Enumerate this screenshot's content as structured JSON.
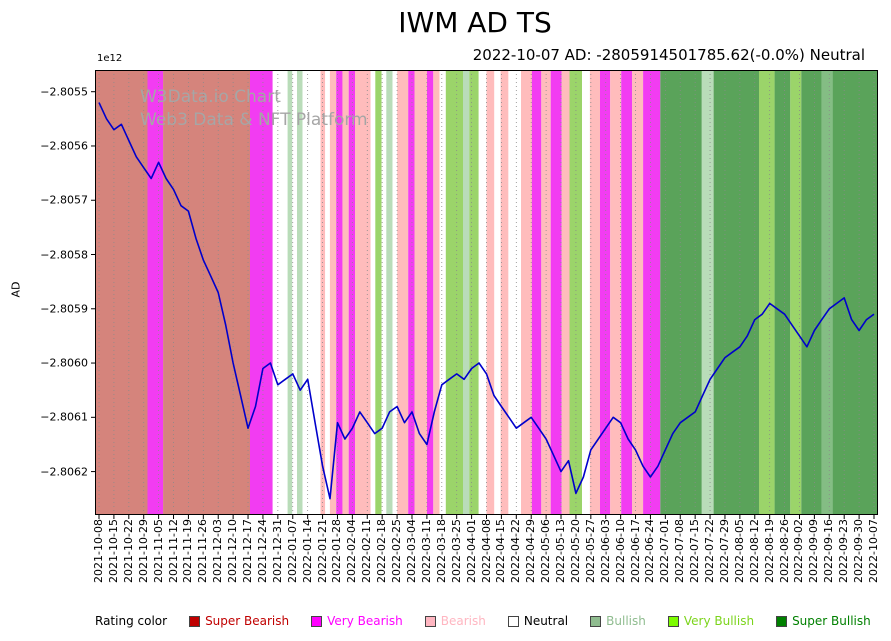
{
  "chart_data": {
    "type": "line",
    "title": "IWM AD TS",
    "subtitle": "2022-10-07 AD: -2805914501785.62(-0.0%) Neutral",
    "as_of_date": "2022-10-07",
    "ad_current_value": "-2805914501785.62",
    "ad_change_pct": "-0.0%",
    "rating_current": "Neutral",
    "ylabel": "AD",
    "y_offset_label": "1e12",
    "y_scale": "values are in units of 1e12",
    "ylim": [
      -2.80628,
      -2.80546
    ],
    "y_ticks": {
      "values": [
        -2.8055,
        -2.8056,
        -2.8057,
        -2.8058,
        -2.8059,
        -2.806,
        -2.8061,
        -2.8062
      ],
      "labels": [
        "−2.8055",
        "−2.8056",
        "−2.8057",
        "−2.8058",
        "−2.8059",
        "−2.8060",
        "−2.8061",
        "−2.8062"
      ]
    },
    "x_tick_labels": [
      "2021-10-08",
      "2021-10-15",
      "2021-10-22",
      "2021-10-29",
      "2021-11-05",
      "2021-11-12",
      "2021-11-19",
      "2021-11-26",
      "2021-12-03",
      "2021-12-10",
      "2021-12-17",
      "2021-12-24",
      "2021-12-31",
      "2022-01-07",
      "2022-01-14",
      "2022-01-21",
      "2022-01-28",
      "2022-02-04",
      "2022-02-11",
      "2022-02-18",
      "2022-02-25",
      "2022-03-04",
      "2022-03-11",
      "2022-03-18",
      "2022-03-25",
      "2022-04-01",
      "2022-04-08",
      "2022-04-15",
      "2022-04-22",
      "2022-04-29",
      "2022-05-06",
      "2022-05-13",
      "2022-05-20",
      "2022-05-27",
      "2022-06-03",
      "2022-06-10",
      "2022-06-17",
      "2022-06-24",
      "2022-07-01",
      "2022-07-08",
      "2022-07-15",
      "2022-07-22",
      "2022-07-29",
      "2022-08-05",
      "2022-08-12",
      "2022-08-19",
      "2022-08-26",
      "2022-09-02",
      "2022-09-09",
      "2022-09-16",
      "2022-09-23",
      "2022-09-30",
      "2022-10-07"
    ],
    "series": [
      {
        "name": "AD",
        "color": "#0000cc",
        "values": [
          -2.80552,
          -2.80555,
          -2.80557,
          -2.80556,
          -2.80559,
          -2.80562,
          -2.80564,
          -2.80566,
          -2.80563,
          -2.80566,
          -2.80568,
          -2.80571,
          -2.80572,
          -2.80577,
          -2.80581,
          -2.80584,
          -2.80587,
          -2.80593,
          -2.806,
          -2.80606,
          -2.80612,
          -2.80608,
          -2.80601,
          -2.806,
          -2.80604,
          -2.80603,
          -2.80602,
          -2.80605,
          -2.80603,
          -2.80611,
          -2.80619,
          -2.80625,
          -2.80611,
          -2.80614,
          -2.80612,
          -2.80609,
          -2.80611,
          -2.80613,
          -2.80612,
          -2.80609,
          -2.80608,
          -2.80611,
          -2.80609,
          -2.80613,
          -2.80615,
          -2.80609,
          -2.80604,
          -2.80603,
          -2.80602,
          -2.80603,
          -2.80601,
          -2.806,
          -2.80602,
          -2.80606,
          -2.80608,
          -2.8061,
          -2.80612,
          -2.80611,
          -2.8061,
          -2.80612,
          -2.80614,
          -2.80617,
          -2.8062,
          -2.80618,
          -2.80624,
          -2.80621,
          -2.80616,
          -2.80614,
          -2.80612,
          -2.8061,
          -2.80611,
          -2.80614,
          -2.80616,
          -2.80619,
          -2.80621,
          -2.80619,
          -2.80616,
          -2.80613,
          -2.80611,
          -2.8061,
          -2.80609,
          -2.80606,
          -2.80603,
          -2.80601,
          -2.80599,
          -2.80598,
          -2.80597,
          -2.80595,
          -2.80592,
          -2.80591,
          -2.80589,
          -2.8059,
          -2.80591,
          -2.80593,
          -2.80595,
          -2.80597,
          -2.80594,
          -2.80592,
          -2.8059,
          -2.80589,
          -2.80588,
          -2.80592,
          -2.80594,
          -2.80592,
          -2.80591
        ]
      }
    ],
    "band_palette": {
      "bearish_blend": "#d5847c",
      "very_bearish": "#f23cf2",
      "bearish": "#ffbcbc",
      "neutral": "#ffffff",
      "bullish": "#5aa35a",
      "bullish_mid": "#84bd84",
      "bullish_pale": "#b9dcb9",
      "very_bullish": "#9bd46a"
    },
    "rating_bands": [
      {
        "s": 0.0,
        "e": 0.067,
        "r": "bearish_blend"
      },
      {
        "s": 0.067,
        "e": 0.087,
        "r": "very_bearish"
      },
      {
        "s": 0.087,
        "e": 0.198,
        "r": "bearish_blend"
      },
      {
        "s": 0.198,
        "e": 0.227,
        "r": "very_bearish"
      },
      {
        "s": 0.227,
        "e": 0.246,
        "r": "neutral"
      },
      {
        "s": 0.246,
        "e": 0.252,
        "r": "bullish_pale"
      },
      {
        "s": 0.252,
        "e": 0.258,
        "r": "neutral"
      },
      {
        "s": 0.258,
        "e": 0.265,
        "r": "bullish_pale"
      },
      {
        "s": 0.265,
        "e": 0.288,
        "r": "neutral"
      },
      {
        "s": 0.288,
        "e": 0.294,
        "r": "bearish"
      },
      {
        "s": 0.294,
        "e": 0.3,
        "r": "neutral"
      },
      {
        "s": 0.3,
        "e": 0.308,
        "r": "bearish"
      },
      {
        "s": 0.308,
        "e": 0.316,
        "r": "very_bearish"
      },
      {
        "s": 0.316,
        "e": 0.324,
        "r": "bearish"
      },
      {
        "s": 0.324,
        "e": 0.332,
        "r": "very_bearish"
      },
      {
        "s": 0.332,
        "e": 0.352,
        "r": "bearish"
      },
      {
        "s": 0.352,
        "e": 0.358,
        "r": "neutral"
      },
      {
        "s": 0.358,
        "e": 0.366,
        "r": "very_bullish"
      },
      {
        "s": 0.366,
        "e": 0.372,
        "r": "neutral"
      },
      {
        "s": 0.372,
        "e": 0.38,
        "r": "bullish_pale"
      },
      {
        "s": 0.38,
        "e": 0.386,
        "r": "neutral"
      },
      {
        "s": 0.386,
        "e": 0.4,
        "r": "bearish"
      },
      {
        "s": 0.4,
        "e": 0.408,
        "r": "very_bearish"
      },
      {
        "s": 0.408,
        "e": 0.424,
        "r": "bearish"
      },
      {
        "s": 0.424,
        "e": 0.432,
        "r": "very_bearish"
      },
      {
        "s": 0.432,
        "e": 0.44,
        "r": "bearish"
      },
      {
        "s": 0.44,
        "e": 0.448,
        "r": "neutral"
      },
      {
        "s": 0.448,
        "e": 0.47,
        "r": "very_bullish"
      },
      {
        "s": 0.47,
        "e": 0.478,
        "r": "bullish_pale"
      },
      {
        "s": 0.478,
        "e": 0.49,
        "r": "very_bullish"
      },
      {
        "s": 0.49,
        "e": 0.5,
        "r": "neutral"
      },
      {
        "s": 0.5,
        "e": 0.51,
        "r": "bearish"
      },
      {
        "s": 0.51,
        "e": 0.518,
        "r": "neutral"
      },
      {
        "s": 0.518,
        "e": 0.528,
        "r": "bearish"
      },
      {
        "s": 0.528,
        "e": 0.544,
        "r": "neutral"
      },
      {
        "s": 0.544,
        "e": 0.558,
        "r": "bearish"
      },
      {
        "s": 0.558,
        "e": 0.57,
        "r": "very_bearish"
      },
      {
        "s": 0.57,
        "e": 0.582,
        "r": "bearish"
      },
      {
        "s": 0.582,
        "e": 0.596,
        "r": "very_bearish"
      },
      {
        "s": 0.596,
        "e": 0.606,
        "r": "bearish"
      },
      {
        "s": 0.606,
        "e": 0.622,
        "r": "very_bullish"
      },
      {
        "s": 0.622,
        "e": 0.632,
        "r": "neutral"
      },
      {
        "s": 0.632,
        "e": 0.645,
        "r": "bearish"
      },
      {
        "s": 0.645,
        "e": 0.658,
        "r": "very_bearish"
      },
      {
        "s": 0.658,
        "e": 0.672,
        "r": "bearish"
      },
      {
        "s": 0.672,
        "e": 0.686,
        "r": "very_bearish"
      },
      {
        "s": 0.686,
        "e": 0.7,
        "r": "bearish"
      },
      {
        "s": 0.7,
        "e": 0.722,
        "r": "very_bearish"
      },
      {
        "s": 0.722,
        "e": 0.775,
        "r": "bullish"
      },
      {
        "s": 0.775,
        "e": 0.79,
        "r": "bullish_pale"
      },
      {
        "s": 0.79,
        "e": 0.848,
        "r": "bullish"
      },
      {
        "s": 0.848,
        "e": 0.868,
        "r": "very_bullish"
      },
      {
        "s": 0.868,
        "e": 0.888,
        "r": "bullish"
      },
      {
        "s": 0.888,
        "e": 0.902,
        "r": "very_bullish"
      },
      {
        "s": 0.902,
        "e": 0.928,
        "r": "bullish"
      },
      {
        "s": 0.928,
        "e": 0.942,
        "r": "bullish_mid"
      },
      {
        "s": 0.942,
        "e": 1.0,
        "r": "bullish"
      }
    ],
    "grid": "vertical dotted gridline at each weekly tick",
    "watermark": {
      "line1": "W3Data.io Chart",
      "line2": "Web3 Data & NFT Platform"
    },
    "legend": {
      "title": "Rating color",
      "position": "bottom",
      "items": [
        {
          "label": "Super Bearish",
          "color": "#c00000",
          "text_color": "#c00000"
        },
        {
          "label": "Very Bearish",
          "color": "#ff00ff",
          "text_color": "#ff00ff"
        },
        {
          "label": "Bearish",
          "color": "#ffb6c1",
          "text_color": "#ffb6c1"
        },
        {
          "label": "Neutral",
          "color": "#ffffff",
          "text_color": "#000000"
        },
        {
          "label": "Bullish",
          "color": "#8fbc8f",
          "text_color": "#8fbc8f"
        },
        {
          "label": "Very Bullish",
          "color": "#7cfc00",
          "text_color": "#7cd41c"
        },
        {
          "label": "Super Bullish",
          "color": "#008000",
          "text_color": "#008000"
        }
      ]
    }
  }
}
